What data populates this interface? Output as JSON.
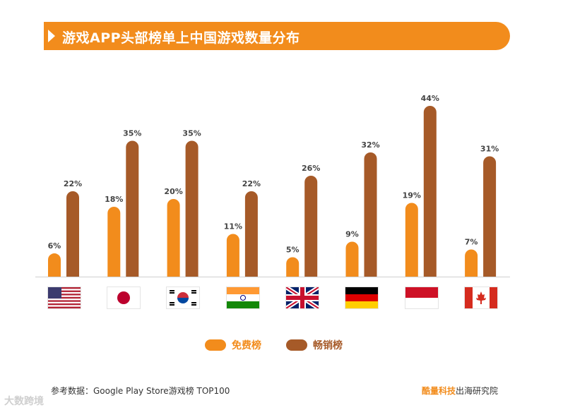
{
  "title": "游戏APP头部榜单上中国游戏数量分布",
  "colors": {
    "free": "#f28c1c",
    "grossing": "#a65a28",
    "title_bar": "#f28c1c",
    "axis": "#cfcfcf",
    "label": "#444444"
  },
  "chart_data": {
    "type": "bar",
    "title": "游戏APP头部榜单上中国游戏数量分布",
    "categories": [
      "美国",
      "日本",
      "韩国",
      "印度",
      "英国",
      "德国",
      "印度尼西亚",
      "加拿大"
    ],
    "category_icons": [
      "flag-usa-icon",
      "flag-japan-icon",
      "flag-korea-icon",
      "flag-india-icon",
      "flag-uk-icon",
      "flag-germany-icon",
      "flag-indonesia-icon",
      "flag-canada-icon"
    ],
    "series": [
      {
        "name": "免费榜",
        "values": [
          6,
          18,
          20,
          11,
          5,
          9,
          19,
          7
        ],
        "labels": [
          "6%",
          "18%",
          "20%",
          "11%",
          "5%",
          "9%",
          "19%",
          "7%"
        ]
      },
      {
        "name": "畅销榜",
        "values": [
          22,
          35,
          35,
          22,
          26,
          32,
          44,
          31
        ],
        "labels": [
          "22%",
          "35%",
          "35%",
          "22%",
          "26%",
          "32%",
          "44%",
          "31%"
        ]
      }
    ],
    "ylim": [
      0,
      50
    ],
    "unit": "%",
    "grid": false,
    "legend": "bottom-center",
    "xlabel": "",
    "ylabel": ""
  },
  "legend": {
    "free": "免费榜",
    "grossing": "畅销榜"
  },
  "footer": {
    "source": "参考数据：Google Play Store游戏榜 TOP100",
    "credit_brand": "酷量科技",
    "credit_rest": "出海研究院"
  },
  "watermark": "大数跨境"
}
